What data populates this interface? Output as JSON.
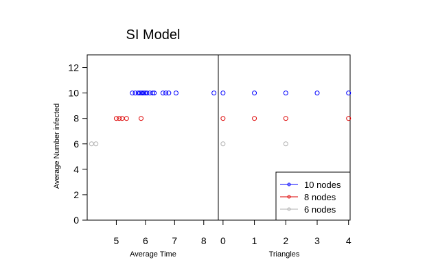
{
  "chart_data": [
    {
      "type": "scatter",
      "title": "SI Model",
      "xlabel": "Average Time",
      "ylabel": "Average Number infected",
      "xlim": [
        4.0,
        8.5
      ],
      "ylim": [
        0,
        13
      ],
      "xticks": [
        5,
        6,
        7,
        8
      ],
      "yticks": [
        0,
        2,
        4,
        6,
        8,
        10,
        12
      ],
      "series": [
        {
          "name": "10 nodes",
          "color": "#0000ff",
          "x": [
            5.55,
            5.65,
            5.75,
            5.8,
            5.85,
            5.9,
            5.95,
            6.0,
            6.05,
            6.15,
            6.25,
            6.3,
            6.6,
            6.7,
            6.8,
            7.05,
            8.35
          ],
          "y": [
            10,
            10,
            10,
            10,
            10,
            10,
            10,
            10,
            10,
            10,
            10,
            10,
            10,
            10,
            10,
            10,
            10
          ]
        },
        {
          "name": "8 nodes",
          "color": "#dd0000",
          "x": [
            5.0,
            5.1,
            5.2,
            5.35,
            5.85
          ],
          "y": [
            8,
            8,
            8,
            8,
            8
          ]
        },
        {
          "name": "6 nodes",
          "color": "#b0b0b0",
          "x": [
            4.15,
            4.3
          ],
          "y": [
            6,
            6
          ]
        }
      ]
    },
    {
      "type": "scatter",
      "xlabel": "Triangles",
      "xlim": [
        -0.15,
        4.05
      ],
      "ylim": [
        0,
        13
      ],
      "xticks": [
        0,
        1,
        2,
        3,
        4
      ],
      "series": [
        {
          "name": "10 nodes",
          "color": "#0000ff",
          "x": [
            0,
            1,
            2,
            3,
            4
          ],
          "y": [
            10,
            10,
            10,
            10,
            10
          ]
        },
        {
          "name": "8 nodes",
          "color": "#dd0000",
          "x": [
            0,
            1,
            2,
            4
          ],
          "y": [
            8,
            8,
            8,
            8
          ]
        },
        {
          "name": "6 nodes",
          "color": "#b0b0b0",
          "x": [
            0,
            2
          ],
          "y": [
            6,
            6
          ]
        }
      ],
      "legend": {
        "position": "bottom-right",
        "entries": [
          "10 nodes",
          "8 nodes",
          "6 nodes"
        ]
      }
    }
  ]
}
